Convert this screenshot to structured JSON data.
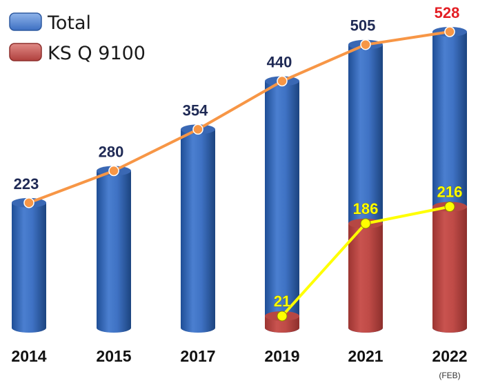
{
  "chart_data": {
    "type": "bar",
    "categories": [
      "2014",
      "2015",
      "2017",
      "2019",
      "2021",
      "2022"
    ],
    "category_notes": [
      "",
      "",
      "",
      "",
      "",
      "(FEB)"
    ],
    "series": [
      {
        "name": "Total",
        "values": [
          223,
          280,
          354,
          440,
          505,
          528
        ]
      },
      {
        "name": "KS Q 9100",
        "values": [
          null,
          null,
          null,
          21,
          186,
          216
        ]
      }
    ],
    "overlay_lines": [
      "Total",
      "KS Q 9100"
    ],
    "title": "",
    "xlabel": "",
    "ylabel": "",
    "ylim": [
      0,
      560
    ],
    "grid": false,
    "legend": "top-left",
    "colors": {
      "total_bar": "#3d6fc2",
      "ks_bar": "#c0504d",
      "total_line": "#f79646",
      "ks_line": "#ffff00",
      "total_label": "#1f2a55",
      "last_total_label": "#e31e24"
    }
  }
}
